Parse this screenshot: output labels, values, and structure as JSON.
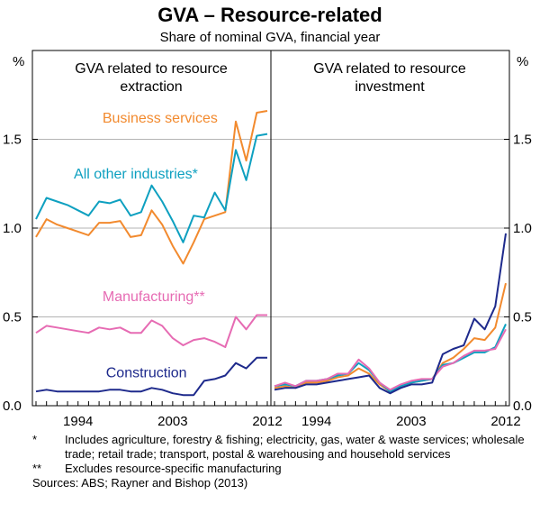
{
  "chart_data": {
    "type": "line",
    "title": "GVA – Resource-related",
    "subtitle": "Share of nominal GVA, financial year",
    "y_unit_left": "%",
    "y_unit_right": "%",
    "ylim": [
      0,
      2.0
    ],
    "y_ticks": [
      0.0,
      0.5,
      1.0,
      1.5
    ],
    "y_tick_labels": [
      "0.0",
      "0.5",
      "1.0",
      "1.5"
    ],
    "x_range": [
      1990,
      2012
    ],
    "x_ticks": [
      1994,
      2003,
      2012
    ],
    "x_tick_labels": [
      "1994",
      "2003",
      "2012"
    ],
    "panels": [
      {
        "title_lines": [
          "GVA related to resource",
          "extraction"
        ],
        "series": [
          {
            "name": "Business services",
            "color": "#f28a2e",
            "label_pos": [
              2001.8,
              1.625
            ],
            "x": [
              1990,
              1991,
              1992,
              1993,
              1994,
              1995,
              1996,
              1997,
              1998,
              1999,
              2000,
              2001,
              2002,
              2003,
              2004,
              2005,
              2006,
              2007,
              2008,
              2009,
              2010,
              2011,
              2012
            ],
            "values": [
              0.95,
              1.05,
              1.02,
              1.0,
              0.98,
              0.96,
              1.03,
              1.03,
              1.04,
              0.95,
              0.96,
              1.1,
              1.02,
              0.9,
              0.8,
              0.92,
              1.05,
              1.07,
              1.09,
              1.6,
              1.38,
              1.65,
              1.66
            ]
          },
          {
            "name": "All other industries*",
            "color": "#0ea0c0",
            "label_pos": [
              1999.5,
              1.31
            ],
            "x": [
              1990,
              1991,
              1992,
              1993,
              1994,
              1995,
              1996,
              1997,
              1998,
              1999,
              2000,
              2001,
              2002,
              2003,
              2004,
              2005,
              2006,
              2007,
              2008,
              2009,
              2010,
              2011,
              2012
            ],
            "values": [
              1.05,
              1.17,
              1.15,
              1.13,
              1.1,
              1.07,
              1.15,
              1.14,
              1.16,
              1.07,
              1.09,
              1.24,
              1.15,
              1.04,
              0.92,
              1.07,
              1.06,
              1.2,
              1.1,
              1.44,
              1.27,
              1.52,
              1.53
            ]
          },
          {
            "name": "Manufacturing**",
            "color": "#e66bb3",
            "label_pos": [
              2001.2,
              0.62
            ],
            "x": [
              1990,
              1991,
              1992,
              1993,
              1994,
              1995,
              1996,
              1997,
              1998,
              1999,
              2000,
              2001,
              2002,
              2003,
              2004,
              2005,
              2006,
              2007,
              2008,
              2009,
              2010,
              2011,
              2012
            ],
            "values": [
              0.41,
              0.45,
              0.44,
              0.43,
              0.42,
              0.41,
              0.44,
              0.43,
              0.44,
              0.41,
              0.41,
              0.48,
              0.45,
              0.38,
              0.34,
              0.37,
              0.38,
              0.36,
              0.33,
              0.5,
              0.43,
              0.51,
              0.51
            ]
          },
          {
            "name": "Construction",
            "color": "#1e2a8c",
            "label_pos": [
              2000.5,
              0.19
            ],
            "x": [
              1990,
              1991,
              1992,
              1993,
              1994,
              1995,
              1996,
              1997,
              1998,
              1999,
              2000,
              2001,
              2002,
              2003,
              2004,
              2005,
              2006,
              2007,
              2008,
              2009,
              2010,
              2011,
              2012
            ],
            "values": [
              0.08,
              0.09,
              0.08,
              0.08,
              0.08,
              0.08,
              0.08,
              0.09,
              0.09,
              0.08,
              0.08,
              0.1,
              0.09,
              0.07,
              0.06,
              0.06,
              0.14,
              0.15,
              0.17,
              0.24,
              0.21,
              0.27,
              0.27
            ]
          }
        ]
      },
      {
        "title_lines": [
          "GVA related to resource",
          "investment"
        ],
        "series": [
          {
            "name": "Business services",
            "color": "#f28a2e",
            "x": [
              1990,
              1991,
              1992,
              1993,
              1994,
              1995,
              1996,
              1997,
              1998,
              1999,
              2000,
              2001,
              2002,
              2003,
              2004,
              2005,
              2006,
              2007,
              2008,
              2009,
              2010,
              2011,
              2012
            ],
            "values": [
              0.1,
              0.11,
              0.1,
              0.13,
              0.13,
              0.14,
              0.16,
              0.17,
              0.21,
              0.18,
              0.12,
              0.08,
              0.11,
              0.13,
              0.14,
              0.15,
              0.24,
              0.27,
              0.32,
              0.38,
              0.37,
              0.44,
              0.69
            ]
          },
          {
            "name": "All other industries*",
            "color": "#0ea0c0",
            "x": [
              1990,
              1991,
              1992,
              1993,
              1994,
              1995,
              1996,
              1997,
              1998,
              1999,
              2000,
              2001,
              2002,
              2003,
              2004,
              2005,
              2006,
              2007,
              2008,
              2009,
              2010,
              2011,
              2012
            ],
            "values": [
              0.11,
              0.12,
              0.11,
              0.14,
              0.14,
              0.15,
              0.17,
              0.18,
              0.24,
              0.2,
              0.13,
              0.08,
              0.11,
              0.13,
              0.14,
              0.15,
              0.23,
              0.24,
              0.27,
              0.3,
              0.3,
              0.33,
              0.46
            ]
          },
          {
            "name": "Manufacturing**",
            "color": "#e66bb3",
            "x": [
              1990,
              1991,
              1992,
              1993,
              1994,
              1995,
              1996,
              1997,
              1998,
              1999,
              2000,
              2001,
              2002,
              2003,
              2004,
              2005,
              2006,
              2007,
              2008,
              2009,
              2010,
              2011,
              2012
            ],
            "values": [
              0.11,
              0.13,
              0.11,
              0.14,
              0.14,
              0.15,
              0.18,
              0.18,
              0.26,
              0.21,
              0.13,
              0.09,
              0.12,
              0.14,
              0.15,
              0.15,
              0.22,
              0.24,
              0.28,
              0.31,
              0.31,
              0.32,
              0.43
            ]
          },
          {
            "name": "Construction",
            "color": "#1e2a8c",
            "x": [
              1990,
              1991,
              1992,
              1993,
              1994,
              1995,
              1996,
              1997,
              1998,
              1999,
              2000,
              2001,
              2002,
              2003,
              2004,
              2005,
              2006,
              2007,
              2008,
              2009,
              2010,
              2011,
              2012
            ],
            "values": [
              0.09,
              0.1,
              0.1,
              0.12,
              0.12,
              0.13,
              0.14,
              0.15,
              0.16,
              0.17,
              0.1,
              0.07,
              0.1,
              0.12,
              0.12,
              0.13,
              0.29,
              0.32,
              0.34,
              0.49,
              0.43,
              0.56,
              0.97
            ]
          }
        ]
      }
    ],
    "notes": [
      {
        "mark": "*",
        "text": "Includes agriculture, forestry & fishing; electricity, gas, water & waste services; wholesale trade; retail trade; transport, postal & warehousing and household services"
      },
      {
        "mark": "**",
        "text": "Excludes resource-specific manufacturing"
      }
    ],
    "sources": "Sources: ABS; Rayner and Bishop (2013)"
  }
}
